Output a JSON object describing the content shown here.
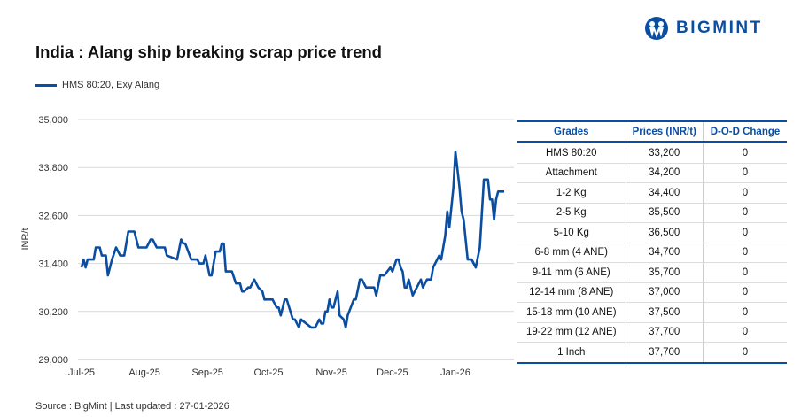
{
  "brand": {
    "name": "BIGMINT",
    "color": "#0a4ea2"
  },
  "title": "India : Alang ship breaking scrap price trend",
  "source": "Source : BigMint | Last updated : 27-01-2026",
  "chart_data": {
    "type": "line",
    "title": "India : Alang ship breaking scrap price trend",
    "ylabel": "INR/t",
    "xlabel": "",
    "ylim": [
      29000,
      35000
    ],
    "yticks": [
      "29,000",
      "30,200",
      "31,400",
      "32,600",
      "33,800",
      "35,000"
    ],
    "ytick_values": [
      29000,
      30200,
      31400,
      32600,
      33800,
      35000
    ],
    "xticks": [
      "Jul-25",
      "Aug-25",
      "Sep-25",
      "Oct-25",
      "Nov-25",
      "Dec-25",
      "Jan-26"
    ],
    "xtick_dates": [
      "2025-07-01",
      "2025-08-01",
      "2025-09-01",
      "2025-10-01",
      "2025-11-01",
      "2025-12-01",
      "2026-01-01"
    ],
    "grid": "horizontal",
    "legend": "top-left",
    "series": [
      {
        "name": "HMS 80:20, Exy Alang",
        "color": "#0a4ea2",
        "points": [
          [
            "2025-07-01",
            31300
          ],
          [
            "2025-07-02",
            31500
          ],
          [
            "2025-07-03",
            31300
          ],
          [
            "2025-07-04",
            31500
          ],
          [
            "2025-07-07",
            31500
          ],
          [
            "2025-07-08",
            31800
          ],
          [
            "2025-07-10",
            31800
          ],
          [
            "2025-07-11",
            31600
          ],
          [
            "2025-07-13",
            31600
          ],
          [
            "2025-07-14",
            31100
          ],
          [
            "2025-07-16",
            31500
          ],
          [
            "2025-07-18",
            31800
          ],
          [
            "2025-07-20",
            31600
          ],
          [
            "2025-07-22",
            31600
          ],
          [
            "2025-07-24",
            32200
          ],
          [
            "2025-07-27",
            32200
          ],
          [
            "2025-07-29",
            31800
          ],
          [
            "2025-08-02",
            31800
          ],
          [
            "2025-08-04",
            32000
          ],
          [
            "2025-08-05",
            32000
          ],
          [
            "2025-08-07",
            31800
          ],
          [
            "2025-08-11",
            31800
          ],
          [
            "2025-08-12",
            31600
          ],
          [
            "2025-08-17",
            31500
          ],
          [
            "2025-08-19",
            32000
          ],
          [
            "2025-08-20",
            31900
          ],
          [
            "2025-08-21",
            31900
          ],
          [
            "2025-08-24",
            31500
          ],
          [
            "2025-08-27",
            31500
          ],
          [
            "2025-08-28",
            31400
          ],
          [
            "2025-08-30",
            31400
          ],
          [
            "2025-08-31",
            31600
          ],
          [
            "2025-09-02",
            31100
          ],
          [
            "2025-09-03",
            31100
          ],
          [
            "2025-09-05",
            31700
          ],
          [
            "2025-09-07",
            31700
          ],
          [
            "2025-09-08",
            31900
          ],
          [
            "2025-09-09",
            31900
          ],
          [
            "2025-09-10",
            31200
          ],
          [
            "2025-09-13",
            31200
          ],
          [
            "2025-09-15",
            30900
          ],
          [
            "2025-09-17",
            30900
          ],
          [
            "2025-09-18",
            30700
          ],
          [
            "2025-09-19",
            30700
          ],
          [
            "2025-09-21",
            30800
          ],
          [
            "2025-09-22",
            30800
          ],
          [
            "2025-09-24",
            31000
          ],
          [
            "2025-09-26",
            30800
          ],
          [
            "2025-09-28",
            30700
          ],
          [
            "2025-09-29",
            30500
          ],
          [
            "2025-10-03",
            30500
          ],
          [
            "2025-10-05",
            30300
          ],
          [
            "2025-10-06",
            30300
          ],
          [
            "2025-10-07",
            30100
          ],
          [
            "2025-10-09",
            30500
          ],
          [
            "2025-10-10",
            30500
          ],
          [
            "2025-10-13",
            30000
          ],
          [
            "2025-10-14",
            30000
          ],
          [
            "2025-10-16",
            29800
          ],
          [
            "2025-10-17",
            30000
          ],
          [
            "2025-10-22",
            29800
          ],
          [
            "2025-10-24",
            29800
          ],
          [
            "2025-10-26",
            30000
          ],
          [
            "2025-10-27",
            29900
          ],
          [
            "2025-10-28",
            29900
          ],
          [
            "2025-10-29",
            30200
          ],
          [
            "2025-10-30",
            30200
          ],
          [
            "2025-10-31",
            30500
          ],
          [
            "2025-11-01",
            30300
          ],
          [
            "2025-11-02",
            30300
          ],
          [
            "2025-11-04",
            30700
          ],
          [
            "2025-11-05",
            30100
          ],
          [
            "2025-11-07",
            30000
          ],
          [
            "2025-11-08",
            29800
          ],
          [
            "2025-11-09",
            30100
          ],
          [
            "2025-11-12",
            30500
          ],
          [
            "2025-11-13",
            30500
          ],
          [
            "2025-11-15",
            31000
          ],
          [
            "2025-11-16",
            31000
          ],
          [
            "2025-11-18",
            30800
          ],
          [
            "2025-11-22",
            30800
          ],
          [
            "2025-11-23",
            30600
          ],
          [
            "2025-11-25",
            31100
          ],
          [
            "2025-11-27",
            31100
          ],
          [
            "2025-11-30",
            31300
          ],
          [
            "2025-12-01",
            31200
          ],
          [
            "2025-12-03",
            31500
          ],
          [
            "2025-12-04",
            31500
          ],
          [
            "2025-12-05",
            31300
          ],
          [
            "2025-12-06",
            31200
          ],
          [
            "2025-12-07",
            30800
          ],
          [
            "2025-12-08",
            30800
          ],
          [
            "2025-12-09",
            31000
          ],
          [
            "2025-12-11",
            30600
          ],
          [
            "2025-12-15",
            31000
          ],
          [
            "2025-12-16",
            30800
          ],
          [
            "2025-12-18",
            31000
          ],
          [
            "2025-12-20",
            31000
          ],
          [
            "2025-12-21",
            31300
          ],
          [
            "2025-12-23",
            31500
          ],
          [
            "2025-12-24",
            31600
          ],
          [
            "2025-12-25",
            31500
          ],
          [
            "2025-12-27",
            32100
          ],
          [
            "2025-12-28",
            32700
          ],
          [
            "2025-12-29",
            32300
          ],
          [
            "2025-12-31",
            33300
          ],
          [
            "2026-01-01",
            34200
          ],
          [
            "2026-01-03",
            33300
          ],
          [
            "2026-01-04",
            32700
          ],
          [
            "2026-01-05",
            32500
          ],
          [
            "2026-01-07",
            31500
          ],
          [
            "2026-01-09",
            31500
          ],
          [
            "2026-01-11",
            31300
          ],
          [
            "2026-01-13",
            31800
          ],
          [
            "2026-01-15",
            33500
          ],
          [
            "2026-01-17",
            33500
          ],
          [
            "2026-01-18",
            33000
          ],
          [
            "2026-01-19",
            33000
          ],
          [
            "2026-01-20",
            32500
          ],
          [
            "2026-01-21",
            33000
          ],
          [
            "2026-01-22",
            33200
          ],
          [
            "2026-01-25",
            33200
          ]
        ]
      }
    ]
  },
  "table": {
    "headers": [
      "Grades",
      "Prices (INR/t)",
      "D-O-D Change"
    ],
    "rows": [
      [
        "HMS 80:20",
        "33,200",
        "0"
      ],
      [
        "Attachment",
        "34,200",
        "0"
      ],
      [
        "1-2 Kg",
        "34,400",
        "0"
      ],
      [
        "2-5 Kg",
        "35,500",
        "0"
      ],
      [
        "5-10 Kg",
        "36,500",
        "0"
      ],
      [
        "6-8 mm (4 ANE)",
        "34,700",
        "0"
      ],
      [
        "9-11 mm (6 ANE)",
        "35,700",
        "0"
      ],
      [
        "12-14 mm (8 ANE)",
        "37,000",
        "0"
      ],
      [
        "15-18 mm (10 ANE)",
        "37,500",
        "0"
      ],
      [
        "19-22 mm (12 ANE)",
        "37,700",
        "0"
      ],
      [
        "1 Inch",
        "37,700",
        "0"
      ]
    ]
  }
}
